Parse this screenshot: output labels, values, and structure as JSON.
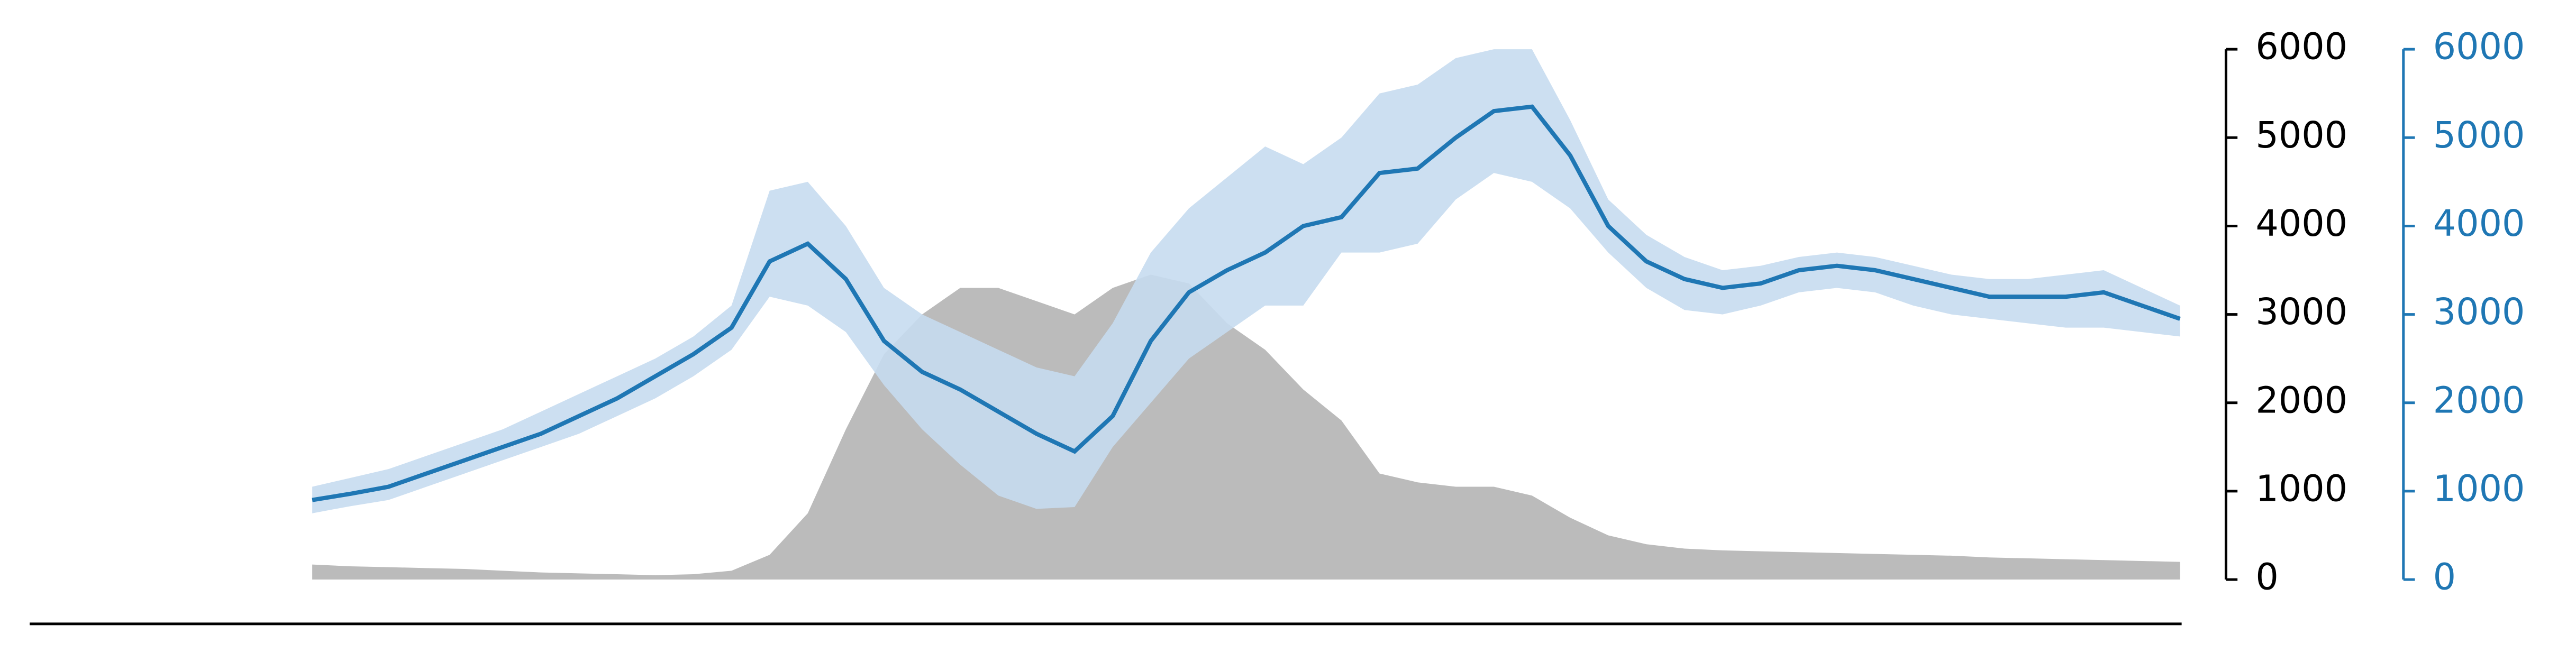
{
  "chart_data": {
    "type": "line",
    "ylim": [
      0,
      6000
    ],
    "yticks": [
      0,
      1000,
      2000,
      3000,
      4000,
      5000,
      6000
    ],
    "y2lim": [
      0,
      6000
    ],
    "y2ticks": [
      0,
      1000,
      2000,
      3000,
      4000,
      5000,
      6000
    ],
    "axis_color": "#000000",
    "y2_axis_color": "#1f77b4",
    "series": [
      {
        "type": "area",
        "color": "#bbbbbb",
        "values": [
          170,
          150,
          140,
          130,
          120,
          100,
          80,
          70,
          60,
          50,
          60,
          100,
          280,
          750,
          1700,
          2550,
          3000,
          3300,
          3300,
          3150,
          3000,
          3300,
          3450,
          3350,
          2900,
          2600,
          2150,
          1800,
          1200,
          1100,
          1050,
          1050,
          950,
          700,
          500,
          400,
          350,
          330,
          320,
          310,
          300,
          290,
          280,
          270,
          250,
          240,
          230,
          220,
          210,
          200
        ]
      },
      {
        "type": "band",
        "axis": "y2",
        "color": "#c6dbef",
        "lower": [
          750,
          830,
          900,
          1050,
          1200,
          1350,
          1500,
          1650,
          1850,
          2050,
          2300,
          2600,
          3200,
          3100,
          2800,
          2200,
          1700,
          1300,
          950,
          800,
          820,
          1500,
          2000,
          2500,
          2800,
          3100,
          3100,
          3700,
          3700,
          3800,
          4300,
          4600,
          4500,
          4200,
          3700,
          3300,
          3050,
          3000,
          3100,
          3250,
          3300,
          3250,
          3100,
          3000,
          2950,
          2900,
          2850,
          2850,
          2800,
          2750
        ],
        "upper": [
          1050,
          1150,
          1250,
          1400,
          1550,
          1700,
          1900,
          2100,
          2300,
          2500,
          2750,
          3100,
          4400,
          4500,
          4000,
          3300,
          3000,
          2800,
          2600,
          2400,
          2300,
          2900,
          3700,
          4200,
          4550,
          4900,
          4700,
          5000,
          5500,
          5600,
          5900,
          6000,
          6000,
          5200,
          4300,
          3900,
          3650,
          3500,
          3550,
          3650,
          3700,
          3650,
          3550,
          3450,
          3400,
          3400,
          3450,
          3500,
          3300,
          3100
        ]
      },
      {
        "type": "line",
        "axis": "y2",
        "color": "#1f77b4",
        "values": [
          900,
          970,
          1050,
          1200,
          1350,
          1500,
          1650,
          1850,
          2050,
          2300,
          2550,
          2850,
          3600,
          3800,
          3400,
          2700,
          2350,
          2150,
          1900,
          1650,
          1450,
          1850,
          2700,
          3250,
          3500,
          3700,
          4000,
          4100,
          4600,
          4650,
          5000,
          5300,
          5350,
          4800,
          4000,
          3600,
          3400,
          3300,
          3350,
          3500,
          3550,
          3500,
          3400,
          3300,
          3200,
          3200,
          3200,
          3250,
          3100,
          2950
        ]
      }
    ]
  }
}
